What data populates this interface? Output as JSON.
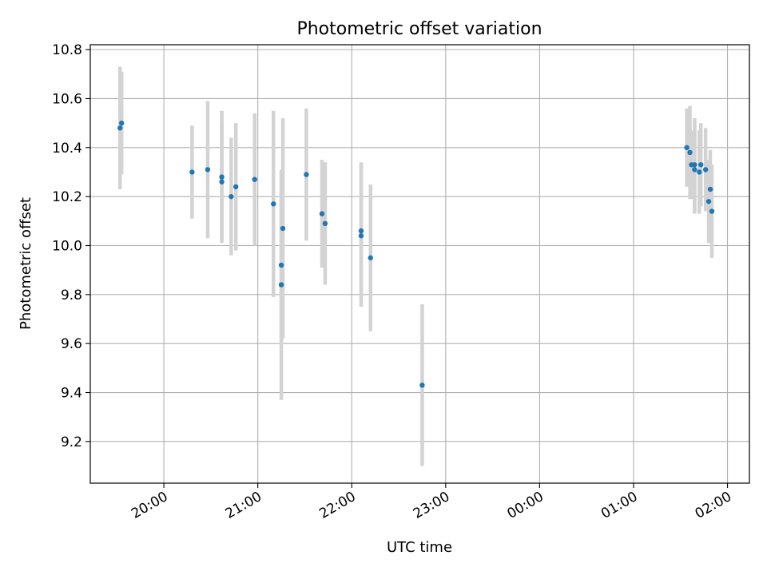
{
  "chart_data": {
    "type": "scatter",
    "title": "Photometric offset variation",
    "xlabel": "UTC time",
    "ylabel": "Photometric offset",
    "x_ticks": [
      "20:00",
      "21:00",
      "22:00",
      "23:00",
      "00:00",
      "01:00",
      "02:00"
    ],
    "y_ticks": [
      "9.2",
      "9.4",
      "9.6",
      "9.8",
      "10.0",
      "10.2",
      "10.4",
      "10.6",
      "10.8"
    ],
    "xlim": [
      "19:13",
      "02:14"
    ],
    "ylim": [
      9.03,
      10.82
    ],
    "grid": true,
    "marker_color": "#1f77b4",
    "errorbar_color": "#d3d3d3",
    "points": [
      {
        "t": "19:32",
        "y": 10.48,
        "err": 0.25
      },
      {
        "t": "19:33",
        "y": 10.5,
        "err": 0.21
      },
      {
        "t": "20:18",
        "y": 10.3,
        "err": 0.19
      },
      {
        "t": "20:28",
        "y": 10.31,
        "err": 0.28
      },
      {
        "t": "20:37",
        "y": 10.28,
        "err": 0.27
      },
      {
        "t": "20:37",
        "y": 10.26,
        "err": 0.24
      },
      {
        "t": "20:43",
        "y": 10.2,
        "err": 0.24
      },
      {
        "t": "20:46",
        "y": 10.24,
        "err": 0.26
      },
      {
        "t": "20:58",
        "y": 10.27,
        "err": 0.27
      },
      {
        "t": "21:10",
        "y": 10.17,
        "err": 0.38
      },
      {
        "t": "21:15",
        "y": 9.84,
        "err": 0.47
      },
      {
        "t": "21:15",
        "y": 9.92,
        "err": 0.3
      },
      {
        "t": "21:16",
        "y": 10.07,
        "err": 0.45
      },
      {
        "t": "21:31",
        "y": 10.29,
        "err": 0.27
      },
      {
        "t": "21:41",
        "y": 10.13,
        "err": 0.22
      },
      {
        "t": "21:43",
        "y": 10.09,
        "err": 0.25
      },
      {
        "t": "22:06",
        "y": 10.04,
        "err": 0.29
      },
      {
        "t": "22:06",
        "y": 10.06,
        "err": 0.28
      },
      {
        "t": "22:12",
        "y": 9.95,
        "err": 0.3
      },
      {
        "t": "22:45",
        "y": 9.43,
        "err": 0.33
      },
      {
        "t": "01:34",
        "y": 10.4,
        "err": 0.16
      },
      {
        "t": "01:36",
        "y": 10.38,
        "err": 0.19
      },
      {
        "t": "01:37",
        "y": 10.33,
        "err": 0.14
      },
      {
        "t": "01:39",
        "y": 10.31,
        "err": 0.18
      },
      {
        "t": "01:39",
        "y": 10.33,
        "err": 0.19
      },
      {
        "t": "01:42",
        "y": 10.3,
        "err": 0.17
      },
      {
        "t": "01:43",
        "y": 10.33,
        "err": 0.17
      },
      {
        "t": "01:46",
        "y": 10.31,
        "err": 0.17
      },
      {
        "t": "01:48",
        "y": 10.18,
        "err": 0.17
      },
      {
        "t": "01:49",
        "y": 10.23,
        "err": 0.16
      },
      {
        "t": "01:50",
        "y": 10.14,
        "err": 0.19
      }
    ]
  }
}
